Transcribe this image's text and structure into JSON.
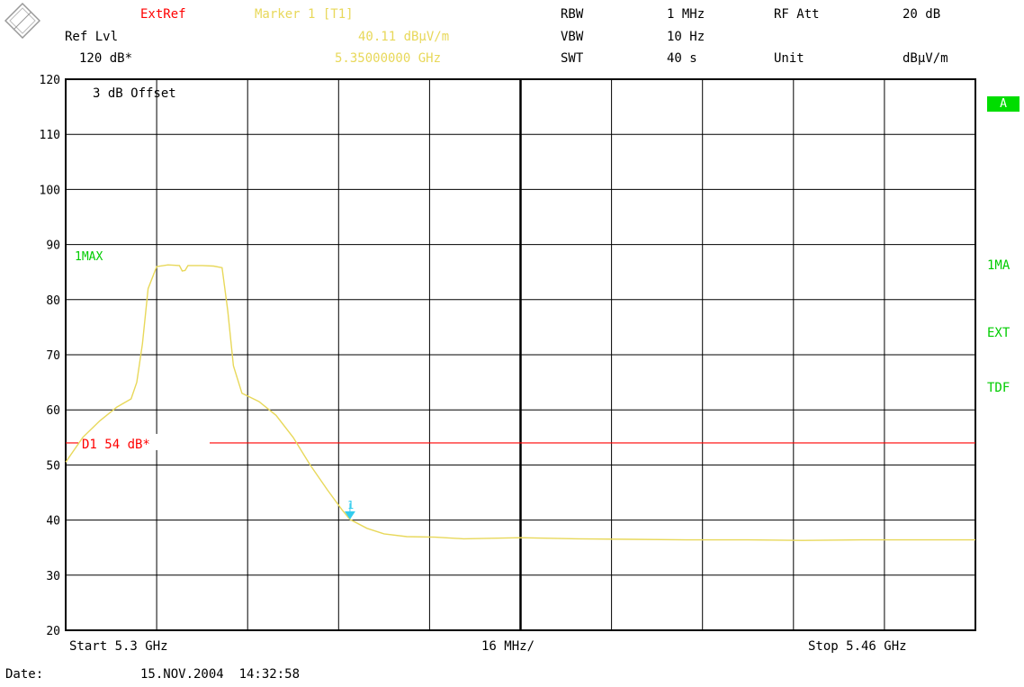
{
  "header": {
    "logo_text": "R&S",
    "ext_ref": "ExtRef",
    "ref_lvl_label": "Ref Lvl",
    "ref_lvl_value": "120 dB*",
    "marker_label": "Marker 1 [T1]",
    "marker_level": "40.11 dBµV/m",
    "marker_freq": "5.35000000 GHz",
    "rbw_label": "RBW",
    "rbw_value": "1 MHz",
    "vbw_label": "VBW",
    "vbw_value": "10 Hz",
    "swt_label": "SWT",
    "swt_value": "40 s",
    "rf_att_label": "RF Att",
    "rf_att_value": "20 dB",
    "unit_label": "Unit",
    "unit_value": "dBµV/m"
  },
  "side_labels": {
    "a_badge": "A",
    "trace_mode": "1MA",
    "ext": "EXT",
    "tdf": "TDF"
  },
  "footer": {
    "start": "Start 5.3 GHz",
    "span_div": "16 MHz/",
    "stop": "Stop 5.46 GHz",
    "date_label": "Date:",
    "date_value": "15.NOV.2004  14:32:58"
  },
  "colors": {
    "trace": "#e8d85a",
    "display_line": "#ff0000",
    "marker": "#33ccee",
    "grid": "#000000",
    "label_green": "#00cc00"
  },
  "chart_data": {
    "type": "line",
    "offset_label": "3 dB Offset",
    "trace_label": "1MAX",
    "x_unit": "GHz",
    "xlim": [
      5.3,
      5.46
    ],
    "ylim": [
      20,
      120
    ],
    "yticks": [
      20,
      30,
      40,
      50,
      60,
      70,
      80,
      90,
      100,
      110,
      120
    ],
    "grid": true,
    "series": [
      {
        "name": "1MAX",
        "x": [
          5.3,
          5.303,
          5.306,
          5.309,
          5.3115,
          5.3125,
          5.3135,
          5.3145,
          5.316,
          5.318,
          5.32,
          5.3205,
          5.321,
          5.3215,
          5.324,
          5.326,
          5.3275,
          5.3285,
          5.3295,
          5.331,
          5.334,
          5.337,
          5.34,
          5.343,
          5.346,
          5.3485,
          5.35,
          5.353,
          5.356,
          5.36,
          5.365,
          5.37,
          5.375,
          5.38,
          5.39,
          5.4,
          5.41,
          5.42,
          5.43,
          5.44,
          5.45,
          5.46
        ],
        "y": [
          50.5,
          55,
          58,
          60.5,
          62,
          65,
          72,
          82,
          86,
          86.3,
          86.2,
          85.2,
          85.3,
          86.2,
          86.2,
          86.1,
          85.8,
          78,
          68,
          63,
          61.5,
          59,
          55,
          50,
          45.5,
          42,
          40.11,
          38.5,
          37.5,
          37,
          36.9,
          36.6,
          36.7,
          36.8,
          36.6,
          36.5,
          36.4,
          36.4,
          36.3,
          36.4,
          36.4,
          36.4
        ]
      }
    ],
    "display_line": {
      "label": "D1 54 dB*",
      "value": 54
    },
    "marker": {
      "label": "1",
      "x": 5.35,
      "y": 40.11
    }
  }
}
